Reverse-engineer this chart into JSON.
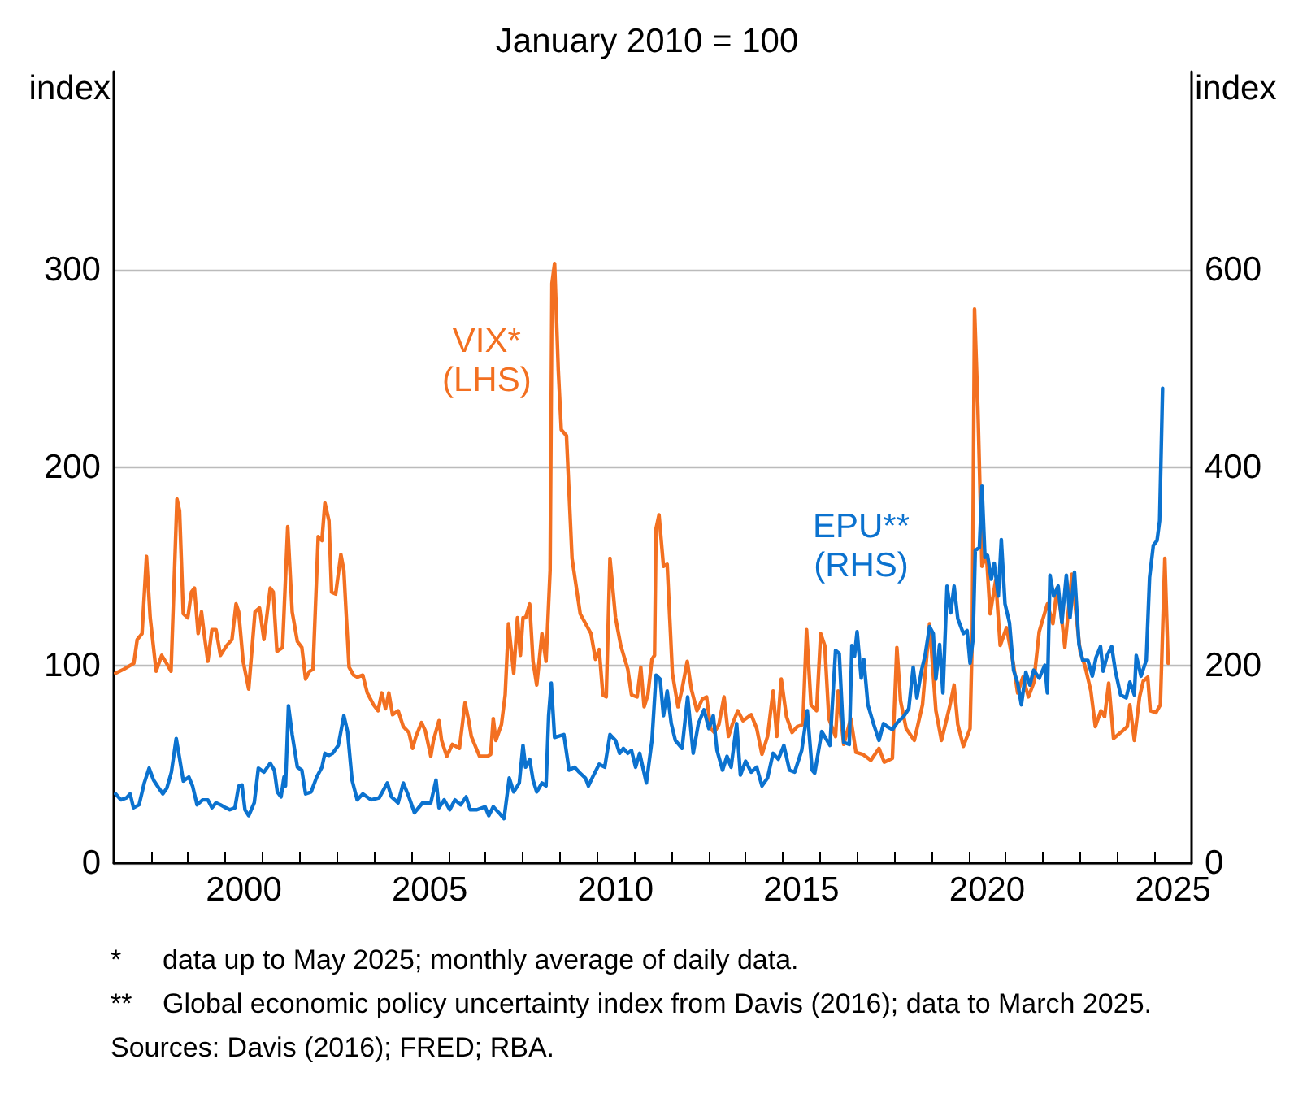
{
  "chart_data": {
    "type": "line",
    "subtitle": "January 2010 = 100",
    "ylabel": "index",
    "y2label": "index",
    "xlim": [
      1997,
      2026
    ],
    "xticks": [
      {
        "value": 1998,
        "label": null
      },
      {
        "value": 1999,
        "label": null
      },
      {
        "value": 2000,
        "label": null
      },
      {
        "value": 2001,
        "label": null
      },
      {
        "value": 2002,
        "label": null
      },
      {
        "value": 2003,
        "label": null
      },
      {
        "value": 2004,
        "label": null
      },
      {
        "value": 2005,
        "label": null
      },
      {
        "value": 2006,
        "label": null
      },
      {
        "value": 2007,
        "label": null
      },
      {
        "value": 2008,
        "label": null
      },
      {
        "value": 2009,
        "label": null
      },
      {
        "value": 2010,
        "label": null
      },
      {
        "value": 2011,
        "label": null
      },
      {
        "value": 2012,
        "label": null
      },
      {
        "value": 2013,
        "label": null
      },
      {
        "value": 2014,
        "label": null
      },
      {
        "value": 2015,
        "label": null
      },
      {
        "value": 2016,
        "label": null
      },
      {
        "value": 2017,
        "label": null
      },
      {
        "value": 2018,
        "label": null
      },
      {
        "value": 2019,
        "label": null
      },
      {
        "value": 2020,
        "label": null
      },
      {
        "value": 2021,
        "label": null
      },
      {
        "value": 2022,
        "label": null
      },
      {
        "value": 2023,
        "label": null
      },
      {
        "value": 2024,
        "label": null
      },
      {
        "value": 2025,
        "label": null
      },
      {
        "value": 2000.5,
        "label": "2000"
      },
      {
        "value": 2005.5,
        "label": "2005"
      },
      {
        "value": 2010.5,
        "label": "2010"
      },
      {
        "value": 2015.5,
        "label": "2015"
      },
      {
        "value": 2020.5,
        "label": "2020"
      },
      {
        "value": 2025.5,
        "label": "2025"
      }
    ],
    "ylim": [
      0,
      400
    ],
    "yticks": [
      0,
      100,
      200,
      300
    ],
    "y2lim": [
      0,
      800
    ],
    "y2ticks": [
      0,
      200,
      400,
      600
    ],
    "grid": "y",
    "legend": false,
    "series": [
      {
        "name": "VIX*\n(LHS)",
        "color": "#f37021",
        "x": [
          1997.05,
          1997.27,
          1997.54,
          1997.63,
          1997.76,
          1997.88,
          1997.98,
          1998.14,
          1998.29,
          1998.42,
          1998.54,
          1998.7,
          1998.77,
          1998.87,
          1998.99,
          1999.09,
          1999.17,
          1999.27,
          1999.36,
          1999.43,
          1999.53,
          1999.64,
          1999.75,
          1999.87,
          2000.04,
          2000.18,
          2000.29,
          2000.36,
          2000.48,
          2000.63,
          2000.8,
          2000.92,
          2001.04,
          2001.21,
          2001.29,
          2001.39,
          2001.54,
          2001.68,
          2001.8,
          2001.94,
          2002.06,
          2002.16,
          2002.27,
          2002.36,
          2002.5,
          2002.6,
          2002.68,
          2002.79,
          2002.86,
          2002.97,
          2003.11,
          2003.19,
          2003.33,
          2003.45,
          2003.55,
          2003.7,
          2003.82,
          2003.99,
          2004.11,
          2004.21,
          2004.31,
          2004.4,
          2004.5,
          2004.65,
          2004.79,
          2004.94,
          2005.04,
          2005.13,
          2005.28,
          2005.38,
          2005.53,
          2005.6,
          2005.75,
          2005.82,
          2005.96,
          2006.11,
          2006.3,
          2006.45,
          2006.55,
          2006.62,
          2006.84,
          2007.06,
          2007.14,
          2007.21,
          2007.28,
          2007.43,
          2007.53,
          2007.62,
          2007.76,
          2007.86,
          2007.94,
          2008.01,
          2008.08,
          2008.19,
          2008.28,
          2008.38,
          2008.52,
          2008.63,
          2008.74,
          2008.79,
          2008.86,
          2008.96,
          2009.04,
          2009.18,
          2009.33,
          2009.55,
          2009.84,
          2009.96,
          2010.06,
          2010.16,
          2010.25,
          2010.35,
          2010.5,
          2010.64,
          2010.83,
          2010.93,
          2011.08,
          2011.18,
          2011.27,
          2011.37,
          2011.48,
          2011.55,
          2011.59,
          2011.67,
          2011.79,
          2011.89,
          2012.03,
          2012.18,
          2012.29,
          2012.43,
          2012.54,
          2012.69,
          2012.84,
          2012.95,
          2013.06,
          2013.16,
          2013.28,
          2013.42,
          2013.54,
          2013.64,
          2013.79,
          2013.93,
          2014.15,
          2014.3,
          2014.44,
          2014.59,
          2014.74,
          2014.84,
          2014.96,
          2015.1,
          2015.25,
          2015.39,
          2015.54,
          2015.64,
          2015.76,
          2015.91,
          2016.02,
          2016.13,
          2016.24,
          2016.42,
          2016.49,
          2016.64,
          2016.83,
          2016.97,
          2017.15,
          2017.37,
          2017.59,
          2017.73,
          2017.95,
          2018.07,
          2018.17,
          2018.32,
          2018.54,
          2018.76,
          2018.95,
          2019.12,
          2019.27,
          2019.49,
          2019.61,
          2019.71,
          2019.86,
          2020.04,
          2020.1,
          2020.16,
          2020.25,
          2020.36,
          2020.48,
          2020.58,
          2020.73,
          2020.85,
          2021.02,
          2021.21,
          2021.32,
          2021.46,
          2021.61,
          2021.75,
          2021.9,
          2022.12,
          2022.27,
          2022.38,
          2022.49,
          2022.59,
          2022.78,
          2022.88,
          2023.0,
          2023.14,
          2023.29,
          2023.41,
          2023.56,
          2023.66,
          2023.77,
          2023.9,
          2024.09,
          2024.27,
          2024.34,
          2024.46,
          2024.6,
          2024.7,
          2024.82,
          2024.89,
          2025.04,
          2025.16,
          2025.28,
          2025.37
        ],
        "values": [
          96,
          98,
          101,
          113,
          116,
          155,
          124,
          97,
          105,
          101,
          97,
          184,
          178,
          126,
          124,
          137,
          139,
          116,
          127,
          116,
          102,
          118,
          118,
          105,
          110,
          113,
          131,
          127,
          102,
          88,
          127,
          129,
          113,
          139,
          137,
          107,
          109,
          170,
          127,
          112,
          109,
          93,
          97,
          98,
          165,
          163,
          182,
          173,
          137,
          136,
          156,
          148,
          99,
          95,
          94,
          95,
          86,
          80,
          77,
          86,
          78,
          86,
          75,
          77,
          69,
          66,
          58,
          64,
          71,
          67,
          54,
          62,
          72,
          62,
          54,
          60,
          58,
          81,
          72,
          64,
          54,
          54,
          55,
          73,
          62,
          70,
          85,
          121,
          96,
          124,
          105,
          124,
          124,
          131,
          102,
          90,
          116,
          102,
          148,
          293,
          303,
          249,
          219,
          216,
          154,
          126,
          116,
          103,
          108,
          85,
          84,
          154,
          124,
          110,
          98,
          85,
          84,
          99,
          79,
          85,
          103,
          105,
          169,
          176,
          150,
          151,
          96,
          79,
          88,
          102,
          88,
          77,
          83,
          84,
          68,
          66,
          70,
          84,
          64,
          70,
          77,
          72,
          75,
          68,
          55,
          64,
          87,
          64,
          93,
          74,
          66,
          69,
          70,
          118,
          80,
          77,
          116,
          110,
          73,
          64,
          87,
          60,
          73,
          56,
          55,
          52,
          58,
          51,
          53,
          109,
          82,
          68,
          62,
          80,
          121,
          77,
          62,
          79,
          90,
          70,
          59,
          68,
          116,
          280,
          230,
          150,
          156,
          126,
          143,
          110,
          119,
          100,
          86,
          94,
          84,
          91,
          117,
          131,
          121,
          139,
          126,
          109,
          146,
          128,
          107,
          99,
          87,
          69,
          77,
          74,
          91,
          63,
          66,
          69,
          80,
          62,
          84,
          92,
          94,
          77,
          76,
          80,
          154,
          101
        ]
      },
      {
        "name": "EPU**\n(RHS)",
        "color": "#0b72cf",
        "axis": "y2",
        "x": [
          1997.05,
          1997.19,
          1997.34,
          1997.44,
          1997.53,
          1997.68,
          1997.82,
          1997.95,
          1998.07,
          1998.21,
          1998.32,
          1998.43,
          1998.55,
          1998.68,
          1998.77,
          1998.87,
          1999.02,
          1999.12,
          1999.24,
          1999.39,
          1999.53,
          1999.64,
          1999.75,
          1999.87,
          2000.01,
          2000.12,
          2000.26,
          2000.36,
          2000.45,
          2000.53,
          2000.63,
          2000.78,
          2000.89,
          2001.04,
          2001.21,
          2001.32,
          2001.4,
          2001.5,
          2001.58,
          2001.62,
          2001.7,
          2001.8,
          2001.94,
          2002.06,
          2002.16,
          2002.31,
          2002.46,
          2002.6,
          2002.68,
          2002.79,
          2002.89,
          2003.04,
          2003.19,
          2003.29,
          2003.41,
          2003.55,
          2003.7,
          2003.92,
          2004.14,
          2004.36,
          2004.47,
          2004.65,
          2004.79,
          2004.94,
          2005.09,
          2005.31,
          2005.53,
          2005.67,
          2005.75,
          2005.89,
          2006.04,
          2006.18,
          2006.33,
          2006.48,
          2006.59,
          2006.77,
          2006.99,
          2007.09,
          2007.21,
          2007.36,
          2007.5,
          2007.64,
          2007.76,
          2007.91,
          2008.01,
          2008.08,
          2008.19,
          2008.28,
          2008.38,
          2008.52,
          2008.63,
          2008.7,
          2008.77,
          2008.86,
          2009.11,
          2009.25,
          2009.4,
          2009.52,
          2009.69,
          2009.77,
          2009.91,
          2010.06,
          2010.21,
          2010.35,
          2010.5,
          2010.61,
          2010.71,
          2010.83,
          2010.93,
          2011.04,
          2011.15,
          2011.33,
          2011.48,
          2011.59,
          2011.7,
          2011.79,
          2011.89,
          2012.0,
          2012.11,
          2012.29,
          2012.44,
          2012.59,
          2012.73,
          2012.88,
          2013.01,
          2013.13,
          2013.23,
          2013.38,
          2013.5,
          2013.61,
          2013.76,
          2013.86,
          2014.0,
          2014.15,
          2014.3,
          2014.44,
          2014.59,
          2014.74,
          2014.88,
          2015.03,
          2015.18,
          2015.32,
          2015.51,
          2015.66,
          2015.79,
          2015.86,
          2016.05,
          2016.27,
          2016.42,
          2016.52,
          2016.64,
          2016.79,
          2016.86,
          2016.93,
          2017.0,
          2017.11,
          2017.18,
          2017.29,
          2017.44,
          2017.59,
          2017.71,
          2017.81,
          2017.95,
          2018.1,
          2018.25,
          2018.39,
          2018.51,
          2018.61,
          2018.73,
          2018.83,
          2018.95,
          2019.05,
          2019.12,
          2019.22,
          2019.31,
          2019.42,
          2019.52,
          2019.61,
          2019.71,
          2019.86,
          2019.96,
          2020.04,
          2020.12,
          2020.18,
          2020.29,
          2020.36,
          2020.44,
          2020.51,
          2020.61,
          2020.69,
          2020.8,
          2020.88,
          2020.98,
          2021.1,
          2021.21,
          2021.32,
          2021.42,
          2021.54,
          2021.65,
          2021.75,
          2021.9,
          2022.05,
          2022.12,
          2022.19,
          2022.29,
          2022.41,
          2022.51,
          2022.63,
          2022.73,
          2022.85,
          2022.97,
          2023.07,
          2023.21,
          2023.33,
          2023.43,
          2023.55,
          2023.62,
          2023.73,
          2023.85,
          2023.95,
          2024.09,
          2024.24,
          2024.34,
          2024.46,
          2024.51,
          2024.64,
          2024.78,
          2024.87,
          2024.97,
          2025.07,
          2025.14,
          2025.22
        ],
        "values": [
          70,
          64,
          66,
          70,
          56,
          59,
          81,
          96,
          84,
          76,
          70,
          76,
          92,
          126,
          106,
          83,
          87,
          78,
          59,
          64,
          64,
          56,
          61,
          59,
          56,
          54,
          56,
          78,
          79,
          54,
          48,
          61,
          96,
          92,
          101,
          94,
          72,
          67,
          87,
          78,
          159,
          130,
          97,
          94,
          70,
          72,
          87,
          97,
          111,
          109,
          111,
          119,
          149,
          133,
          84,
          64,
          70,
          64,
          66,
          81,
          67,
          61,
          81,
          67,
          51,
          61,
          61,
          84,
          56,
          64,
          54,
          64,
          59,
          67,
          54,
          54,
          57,
          48,
          57,
          51,
          45,
          86,
          72,
          81,
          119,
          97,
          105,
          84,
          72,
          81,
          78,
          149,
          182,
          127,
          130,
          94,
          97,
          92,
          86,
          78,
          89,
          100,
          97,
          130,
          124,
          111,
          116,
          111,
          114,
          97,
          111,
          81,
          124,
          190,
          186,
          149,
          174,
          141,
          124,
          116,
          168,
          111,
          141,
          155,
          136,
          149,
          114,
          94,
          108,
          97,
          141,
          89,
          103,
          92,
          97,
          78,
          86,
          111,
          105,
          119,
          94,
          92,
          114,
          154,
          94,
          91,
          133,
          119,
          215,
          212,
          122,
          120,
          220,
          209,
          234,
          187,
          206,
          160,
          141,
          124,
          141,
          138,
          135,
          143,
          148,
          156,
          198,
          167,
          194,
          210,
          239,
          232,
          186,
          221,
          172,
          280,
          253,
          280,
          247,
          232,
          235,
          202,
          226,
          316,
          319,
          381,
          309,
          311,
          287,
          303,
          270,
          327,
          262,
          243,
          195,
          182,
          160,
          193,
          180,
          195,
          187,
          200,
          172,
          291,
          270,
          280,
          243,
          291,
          248,
          294,
          221,
          205,
          205,
          189,
          208,
          219,
          194,
          210,
          219,
          194,
          170,
          167,
          183,
          170,
          210,
          189,
          205,
          289,
          321,
          326,
          346,
          480
        ]
      }
    ],
    "annotations": [
      "*\tdata up to May 2025; monthly average of daily data.",
      "**\tGlobal economic policy uncertainty index from Davis (2016); data to March 2025.",
      "Sources: Davis (2016); FRED; RBA."
    ]
  }
}
